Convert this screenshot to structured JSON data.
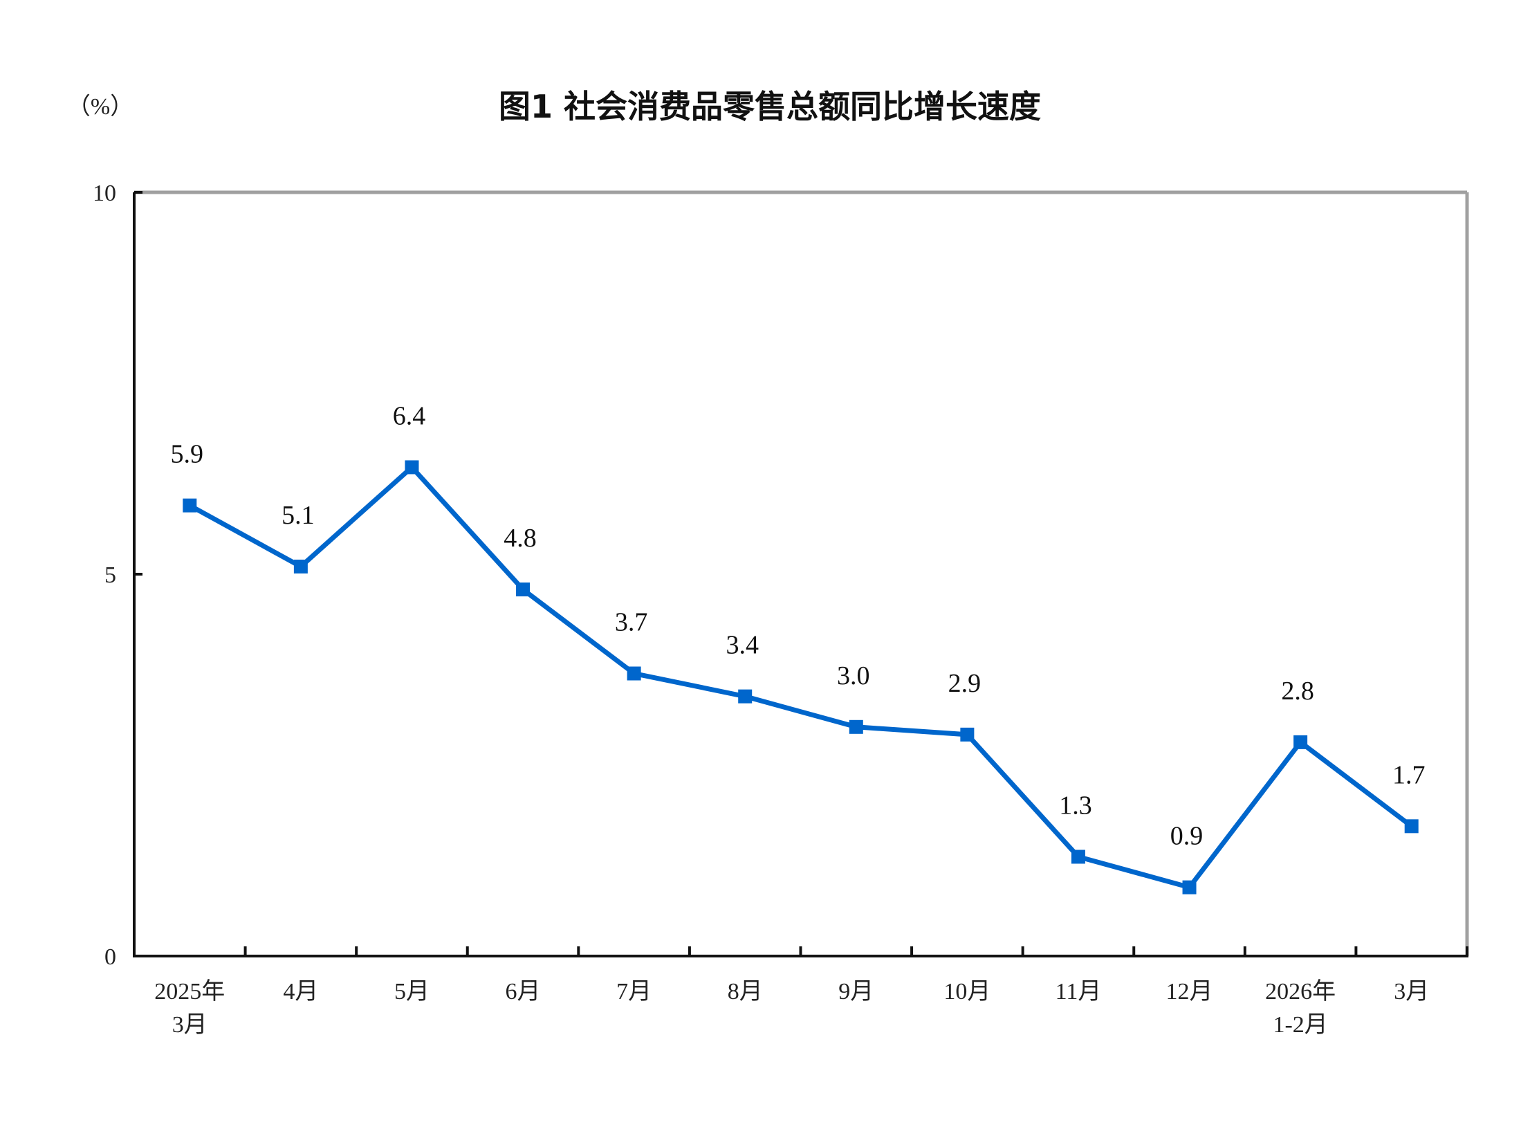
{
  "chart_data": {
    "type": "line",
    "title": "图1  社会消费品零售总额同比增长速度",
    "ylabel": "（%）",
    "xlabel": "",
    "ylim": [
      0,
      10
    ],
    "yticks": [
      0,
      5,
      10
    ],
    "grid": false,
    "categories": [
      [
        "2025年",
        "3月"
      ],
      [
        "4月"
      ],
      [
        "5月"
      ],
      [
        "6月"
      ],
      [
        "7月"
      ],
      [
        "8月"
      ],
      [
        "9月"
      ],
      [
        "10月"
      ],
      [
        "11月"
      ],
      [
        "12月"
      ],
      [
        "2026年",
        "1-2月"
      ],
      [
        "3月"
      ]
    ],
    "series": [
      {
        "name": "社会消费品零售总额同比增长速度",
        "color": "#0066CC",
        "values": [
          5.9,
          5.1,
          6.4,
          4.8,
          3.7,
          3.4,
          3.0,
          2.9,
          1.3,
          0.9,
          2.8,
          1.7
        ],
        "labels": [
          "5.9",
          "5.1",
          "6.4",
          "4.8",
          "3.7",
          "3.4",
          "3.0",
          "2.9",
          "1.3",
          "0.9",
          "2.8",
          "1.7"
        ]
      }
    ]
  }
}
